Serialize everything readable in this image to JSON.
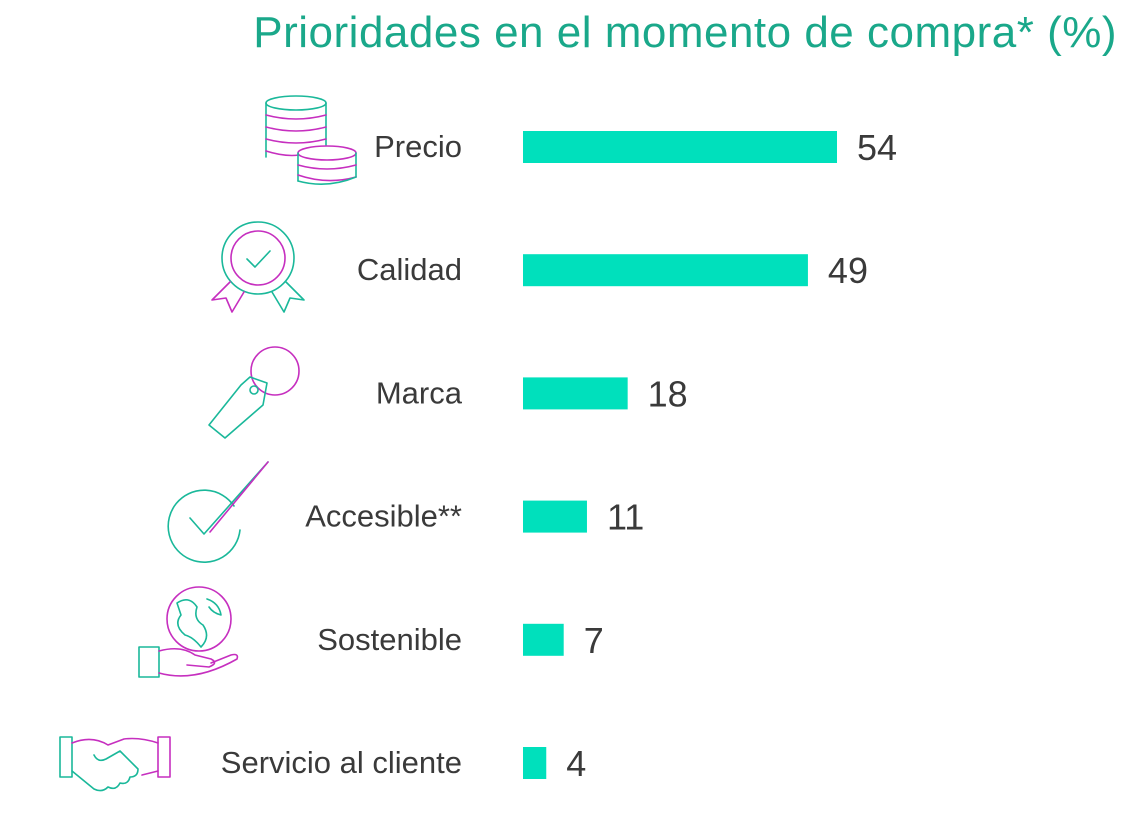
{
  "chart_data": {
    "type": "bar",
    "orientation": "horizontal",
    "title": "Prioridades en el momento de compra* (%)",
    "categories": [
      "Precio",
      "Calidad",
      "Marca",
      "Accesible**",
      "Sostenible",
      "Servicio al cliente"
    ],
    "values": [
      54,
      49,
      18,
      11,
      7,
      4
    ],
    "icons": [
      "coins-icon",
      "award-badge-icon",
      "price-tag-icon",
      "checkmark-icon",
      "globe-in-hand-icon",
      "handshake-icon"
    ],
    "xlim": [
      0,
      100
    ],
    "grid": false,
    "legend": "none"
  },
  "colors": {
    "bar": "#00e0bc",
    "title": "#1aa88a",
    "text": "#3a3a3a",
    "icon_teal": "#1ab89a",
    "icon_magenta": "#c62fbf"
  }
}
